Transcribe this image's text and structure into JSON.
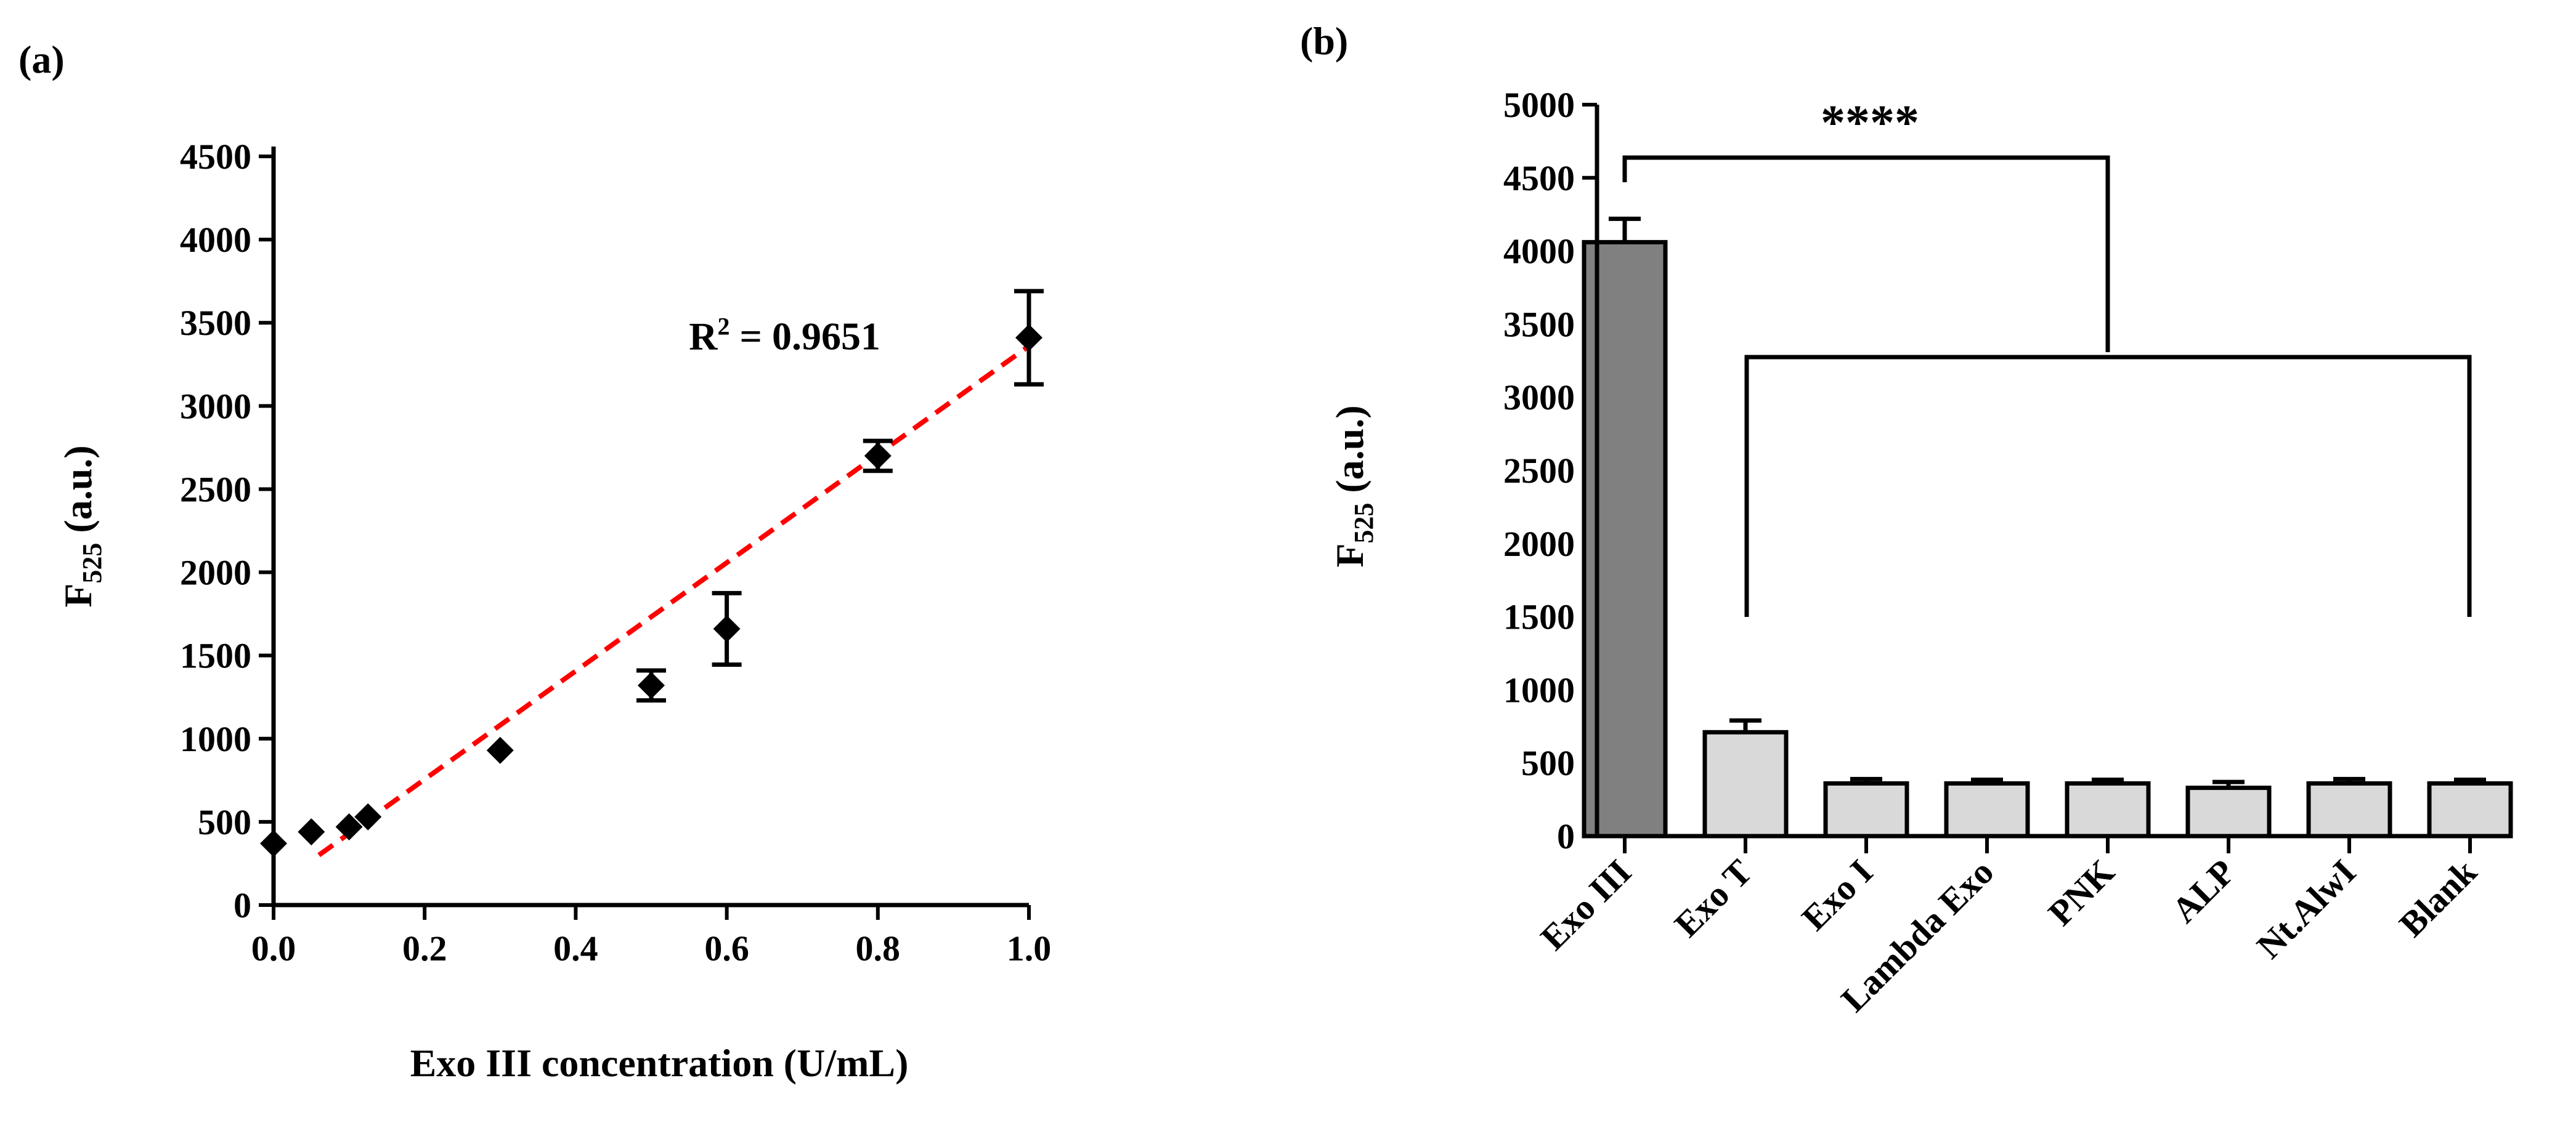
{
  "chart_data": [
    {
      "panel_label": "(a)",
      "type": "scatter",
      "xlabel": "Exo III concentration (U/mL)",
      "ylabel_main": "F",
      "ylabel_sub": "525",
      "ylabel_rest": " (a.u.)",
      "xlim": [
        0,
        1.0
      ],
      "ylim": [
        0,
        4500
      ],
      "xticks": [
        0.0,
        0.2,
        0.4,
        0.6,
        0.8,
        1.0
      ],
      "xtick_labels": [
        "0.0",
        "0.2",
        "0.4",
        "0.6",
        "0.8",
        "1.0"
      ],
      "yticks": [
        0,
        500,
        1000,
        1500,
        2000,
        2500,
        3000,
        3500,
        4000,
        4500
      ],
      "ytick_labels": [
        "0",
        "500",
        "1000",
        "1500",
        "2000",
        "2500",
        "3000",
        "3500",
        "4000",
        "4500"
      ],
      "points": [
        {
          "x": 0.0,
          "y": 370,
          "err": 0
        },
        {
          "x": 0.05,
          "y": 440,
          "err": 0
        },
        {
          "x": 0.1,
          "y": 470,
          "err": 0
        },
        {
          "x": 0.125,
          "y": 530,
          "err": 0
        },
        {
          "x": 0.3,
          "y": 930,
          "err": 0
        },
        {
          "x": 0.5,
          "y": 1320,
          "err": 90
        },
        {
          "x": 0.6,
          "y": 1660,
          "err": 215
        },
        {
          "x": 0.8,
          "y": 2700,
          "err": 90
        },
        {
          "x": 1.0,
          "y": 3410,
          "err": 280
        }
      ],
      "fit_line": {
        "x": [
          0.06,
          1.0
        ],
        "y": [
          300,
          3360
        ],
        "color": "#ff0000",
        "style": "dashed"
      },
      "annotation": {
        "prefix": "R",
        "sup": "2",
        "suffix": " = 0.9651",
        "x": 0.55,
        "y": 3340
      }
    },
    {
      "panel_label": "(b)",
      "type": "bar",
      "ylabel_main": "F",
      "ylabel_sub": "525",
      "ylabel_rest": " (a.u.)",
      "ylim": [
        0,
        5000
      ],
      "yticks": [
        0,
        500,
        1000,
        1500,
        2000,
        2500,
        3000,
        3500,
        4000,
        4500,
        5000
      ],
      "ytick_labels": [
        "0",
        "500",
        "1000",
        "1500",
        "2000",
        "2500",
        "3000",
        "3500",
        "4000",
        "4500",
        "5000"
      ],
      "categories": [
        "Exo III",
        "Exo T",
        "Exo I",
        "Lambda Exo",
        "PNK",
        "ALP",
        "Nt.AlwI",
        "Blank"
      ],
      "values": [
        4060,
        710,
        360,
        360,
        360,
        330,
        360,
        360
      ],
      "errors": [
        160,
        80,
        30,
        25,
        25,
        40,
        30,
        25
      ],
      "colors": [
        "#808080",
        "#d9d9d9",
        "#d9d9d9",
        "#d9d9d9",
        "#d9d9d9",
        "#d9d9d9",
        "#d9d9d9",
        "#d9d9d9"
      ],
      "significance": "****"
    }
  ]
}
